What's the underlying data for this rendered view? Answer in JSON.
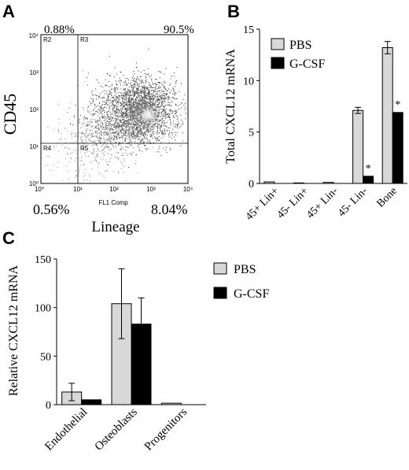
{
  "panels": {
    "A": {
      "letter": "A",
      "ylabel": "CD45",
      "xlabel": "Lineage",
      "axis_caption": "FL1 Comp",
      "tick_labels": [
        "10⁰",
        "10¹",
        "10²",
        "10³",
        "10⁴"
      ],
      "quadrant_names": [
        "R2",
        "R3",
        "R4",
        "R5"
      ],
      "quadrant_percents": {
        "upper_left": "0.88%",
        "upper_right": "90.5%",
        "lower_left": "0.56%",
        "lower_right": "8.04%"
      }
    },
    "B": {
      "letter": "B"
    },
    "C": {
      "letter": "C"
    }
  },
  "chart_data": [
    {
      "type": "scatter",
      "panel": "A",
      "title": "",
      "xlabel": "Lineage",
      "ylabel": "CD45",
      "x_scale": "log",
      "y_scale": "log",
      "xlim": [
        1,
        10000
      ],
      "ylim": [
        1,
        10000
      ],
      "gates": {
        "x": 10,
        "y": 10
      },
      "quadrants": {
        "R2": "0.88%",
        "R3": "90.5%",
        "R4": "0.56%",
        "R5": "8.04%"
      },
      "cluster": {
        "main_center": [
          400,
          100
        ],
        "bright_core": [
          650,
          80
        ]
      }
    },
    {
      "type": "bar",
      "panel": "B",
      "title": "",
      "xlabel": "",
      "ylabel": "Total CXCL12 mRNA",
      "ylim": [
        0,
        15
      ],
      "yticks": [
        0,
        5,
        10,
        15
      ],
      "categories": [
        "45+ Lin+",
        "45- Lin+",
        "45+ Lin-",
        "45- Lin-",
        "Bone"
      ],
      "legend_position": "top-left",
      "series": [
        {
          "name": "PBS",
          "color": "#d8d8d8",
          "values": [
            0.15,
            0.05,
            0.1,
            7.1,
            13.2
          ],
          "errors": [
            0,
            0,
            0,
            0.3,
            0.6
          ]
        },
        {
          "name": "G-CSF",
          "color": "#000000",
          "values": [
            0,
            0,
            0,
            0.7,
            6.9
          ],
          "errors": [
            0,
            0,
            0,
            0,
            0
          ]
        }
      ],
      "significance": [
        {
          "category": "45- Lin-",
          "series": "G-CSF",
          "mark": "*"
        },
        {
          "category": "Bone",
          "series": "G-CSF",
          "mark": "*"
        }
      ]
    },
    {
      "type": "bar",
      "panel": "C",
      "title": "",
      "xlabel": "",
      "ylabel": "Relative CXCL12 mRNA",
      "ylim": [
        0,
        150
      ],
      "yticks": [
        0,
        50,
        100,
        150
      ],
      "categories": [
        "Endothelial",
        "Osteoblasts",
        "Progenitors"
      ],
      "legend_position": "right",
      "series": [
        {
          "name": "PBS",
          "color": "#d8d8d8",
          "values": [
            13,
            104,
            1.5
          ],
          "errors": [
            9,
            36,
            0
          ]
        },
        {
          "name": "G-CSF",
          "color": "#000000",
          "values": [
            5,
            83,
            0
          ],
          "errors": [
            0,
            27,
            0
          ]
        }
      ]
    }
  ]
}
